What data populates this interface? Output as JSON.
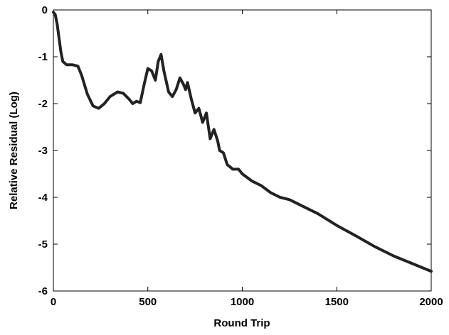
{
  "chart_data": {
    "type": "line",
    "x_label": "Round Trip",
    "y_label": "Relative Residual (Log)",
    "x": [
      0,
      10,
      20,
      30,
      40,
      50,
      70,
      100,
      130,
      150,
      180,
      210,
      240,
      270,
      300,
      340,
      370,
      400,
      420,
      440,
      460,
      480,
      500,
      520,
      540,
      555,
      570,
      585,
      610,
      630,
      650,
      670,
      690,
      700,
      710,
      730,
      750,
      770,
      790,
      810,
      830,
      850,
      870,
      880,
      900,
      920,
      950,
      980,
      1000,
      1050,
      1100,
      1150,
      1200,
      1250,
      1300,
      1400,
      1500,
      1600,
      1700,
      1800,
      2000
    ],
    "series": [
      {
        "color": "#222222",
        "values": [
          -0.05,
          -0.1,
          -0.3,
          -0.6,
          -0.9,
          -1.1,
          -1.17,
          -1.17,
          -1.2,
          -1.4,
          -1.8,
          -2.05,
          -2.1,
          -2.0,
          -1.85,
          -1.75,
          -1.78,
          -1.9,
          -2.0,
          -1.95,
          -1.98,
          -1.6,
          -1.25,
          -1.3,
          -1.5,
          -1.1,
          -0.95,
          -1.3,
          -1.75,
          -1.85,
          -1.7,
          -1.45,
          -1.6,
          -1.7,
          -1.55,
          -1.9,
          -2.2,
          -2.1,
          -2.4,
          -2.2,
          -2.75,
          -2.55,
          -2.8,
          -3.0,
          -3.05,
          -3.3,
          -3.4,
          -3.4,
          -3.5,
          -3.65,
          -3.75,
          -3.9,
          -4.0,
          -4.05,
          -4.15,
          -4.35,
          -4.6,
          -4.82,
          -5.05,
          -5.25,
          -5.58
        ]
      }
    ],
    "xlim": [
      0,
      2000
    ],
    "xticks": [
      0,
      500,
      1000,
      1500,
      2000
    ],
    "ylim": [
      -6,
      0
    ],
    "yticks": [
      -6,
      -5,
      -4,
      -3,
      -2,
      -1,
      0
    ],
    "grid": false
  }
}
